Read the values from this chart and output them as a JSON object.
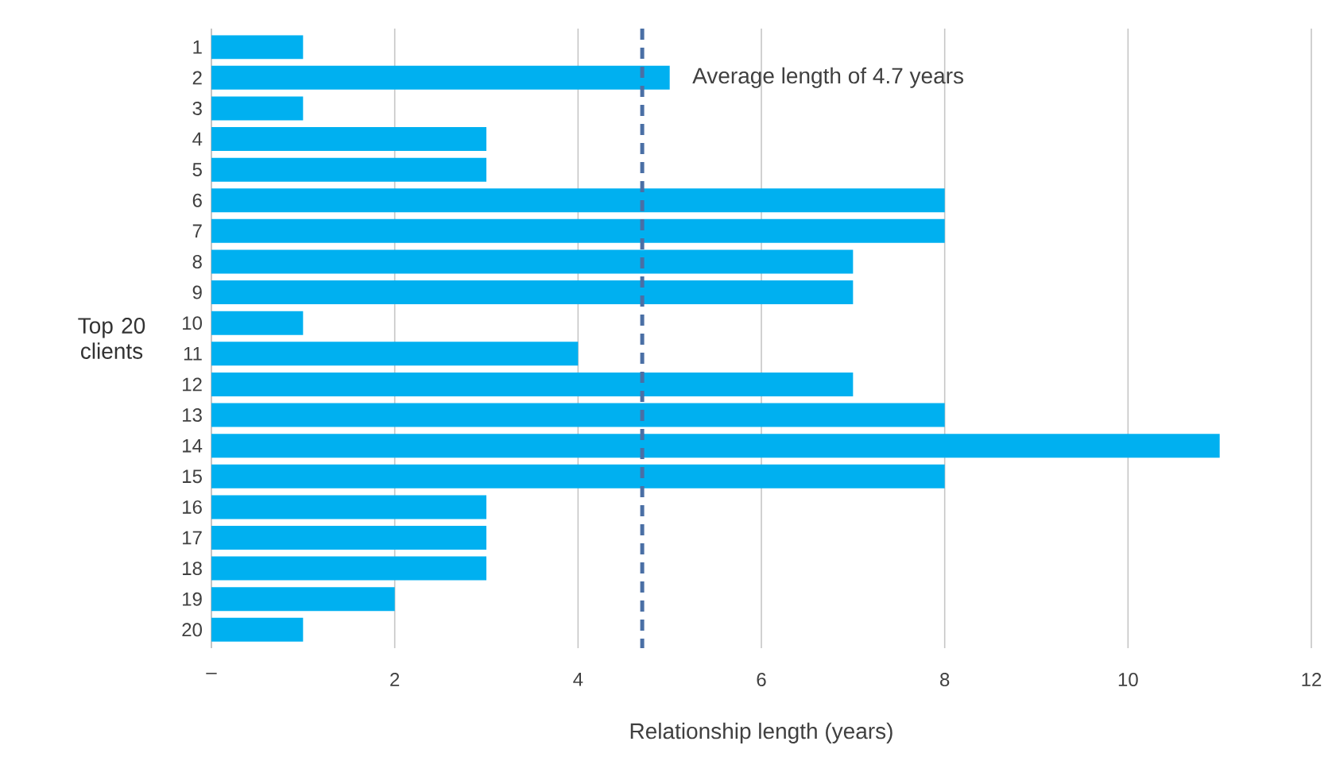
{
  "chart_data": {
    "type": "bar",
    "orientation": "horizontal",
    "xlabel": "Relationship length (years)",
    "ylabel": "Top 20 clients",
    "categories": [
      "1",
      "2",
      "3",
      "4",
      "5",
      "6",
      "7",
      "8",
      "9",
      "10",
      "11",
      "12",
      "13",
      "14",
      "15",
      "16",
      "17",
      "18",
      "19",
      "20"
    ],
    "values": [
      1,
      5,
      1,
      3,
      3,
      8,
      8,
      7,
      7,
      1,
      4,
      7,
      8,
      11,
      8,
      3,
      3,
      3,
      2,
      1
    ],
    "color": "#00b0f0",
    "xlim": [
      0,
      12
    ],
    "xticks": [
      {
        "value": 0,
        "label": "–"
      },
      2,
      4,
      6,
      8,
      10,
      12
    ],
    "grid": "x",
    "ref_lines": [
      {
        "axis": "x",
        "value": 4.7,
        "label": "Average length of 4.7 years",
        "color": "#4a6fa5",
        "line_style": "dashed"
      }
    ]
  }
}
